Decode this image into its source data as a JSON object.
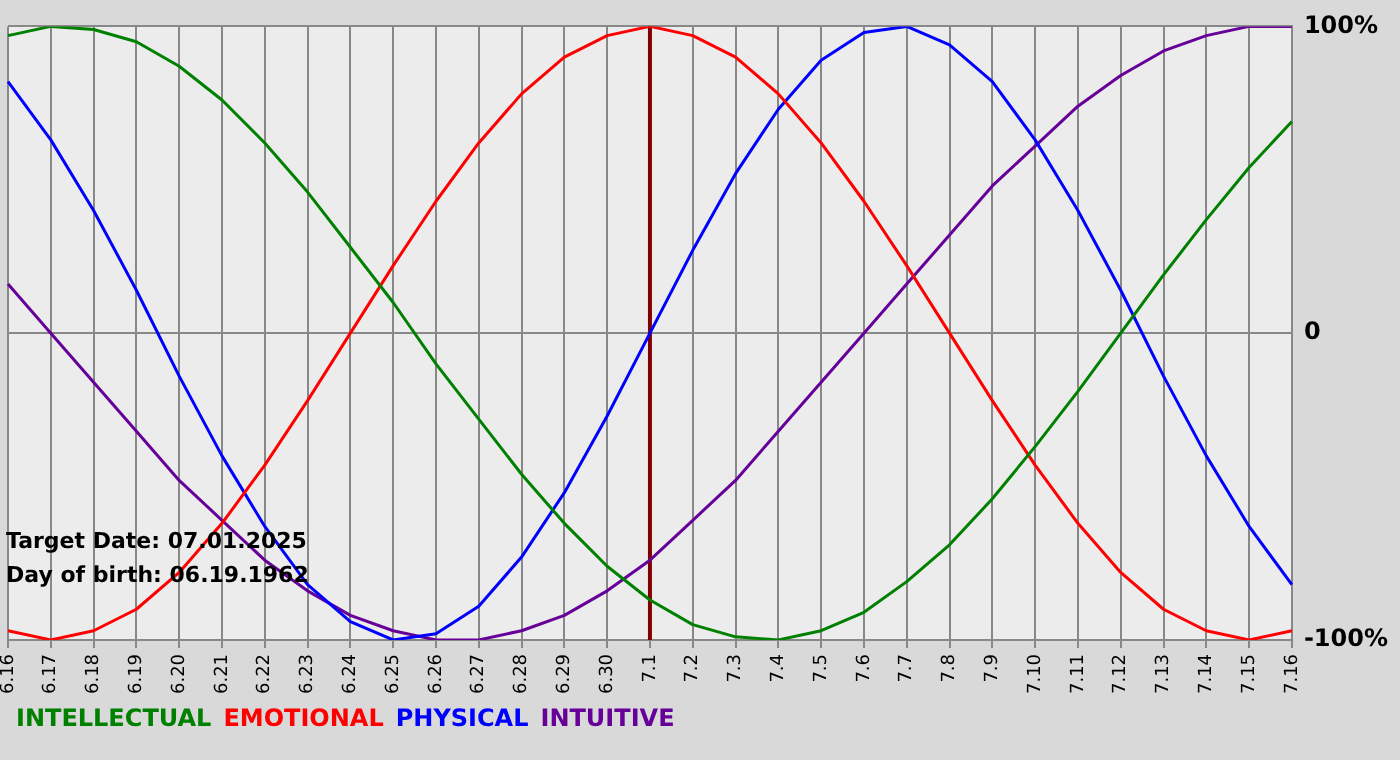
{
  "chart_data": {
    "type": "line",
    "categories": [
      "6.16",
      "6.17",
      "6.18",
      "6.19",
      "6.20",
      "6.21",
      "6.22",
      "6.23",
      "6.24",
      "6.25",
      "6.26",
      "6.27",
      "6.28",
      "6.29",
      "6.30",
      "7.1",
      "7.2",
      "7.3",
      "7.4",
      "7.5",
      "7.6",
      "7.7",
      "7.8",
      "7.9",
      "7.10",
      "7.11",
      "7.12",
      "7.13",
      "7.14",
      "7.15",
      "7.16"
    ],
    "series": [
      {
        "name": "INTELLECTUAL",
        "color": "#008000",
        "values": [
          97,
          100,
          99,
          95,
          87,
          76,
          62,
          46,
          28,
          10,
          -10,
          -28,
          -46,
          -62,
          -76,
          -87,
          -95,
          -99,
          -100,
          -97,
          -91,
          -81,
          -69,
          -54,
          -37,
          -19,
          0,
          19,
          37,
          54,
          69
        ]
      },
      {
        "name": "EMOTIONAL",
        "color": "#ff0000",
        "values": [
          -97,
          -100,
          -97,
          -90,
          -78,
          -62,
          -43,
          -22,
          0,
          22,
          43,
          62,
          78,
          90,
          97,
          100,
          97,
          90,
          78,
          62,
          43,
          22,
          0,
          -22,
          -43,
          -62,
          -78,
          -90,
          -97,
          -100,
          -97
        ]
      },
      {
        "name": "PHYSICAL",
        "color": "#0000ff",
        "values": [
          82,
          63,
          40,
          14,
          -14,
          -40,
          -63,
          -82,
          -94,
          -100,
          -98,
          -89,
          -73,
          -52,
          -27,
          0,
          27,
          52,
          73,
          89,
          98,
          100,
          94,
          82,
          63,
          40,
          14,
          -14,
          -40,
          -63,
          -82
        ]
      },
      {
        "name": "INTUITIVE",
        "color": "#660099",
        "values": [
          16,
          0,
          -16,
          -32,
          -48,
          -61,
          -74,
          -84,
          -92,
          -97,
          -100,
          -100,
          -97,
          -92,
          -84,
          -74,
          -61,
          -48,
          -32,
          -16,
          0,
          16,
          32,
          48,
          61,
          74,
          84,
          92,
          97,
          100,
          100
        ]
      }
    ],
    "ylim": [
      -100,
      100
    ],
    "yticks": [
      {
        "value": 100,
        "label": "100%"
      },
      0,
      {
        "value": -100,
        "label": "-100%"
      }
    ],
    "grid": true,
    "legend": "bottom",
    "marker": "none",
    "line_style": "solid",
    "ref_lines": [
      {
        "axis": "x",
        "value": "7.1",
        "color": "#800000"
      }
    ],
    "annotations": [
      "Target Date: 07.01.2025",
      "Day of birth: 06.19.1962"
    ]
  }
}
